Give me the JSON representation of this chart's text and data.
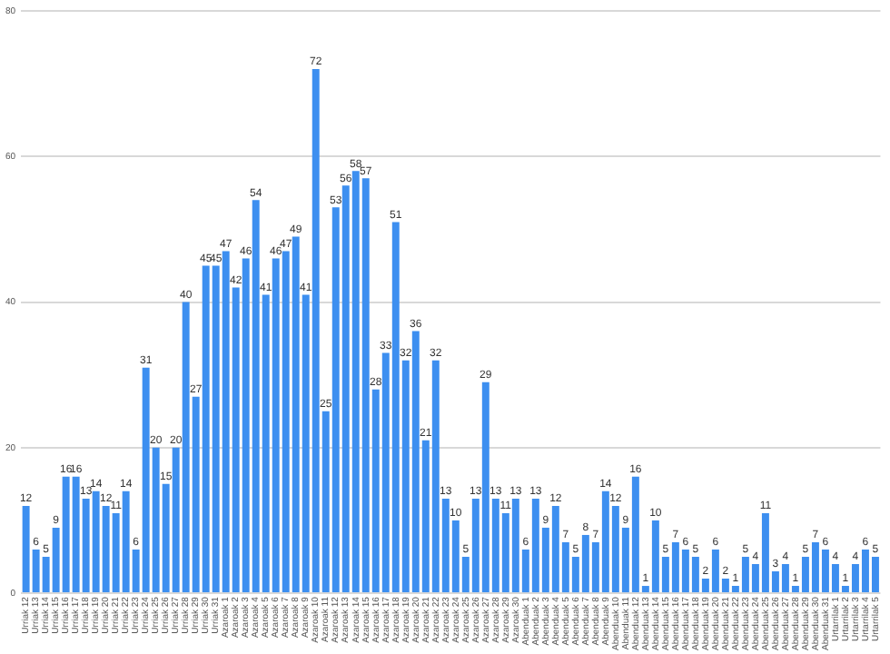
{
  "chart_data": {
    "type": "bar",
    "categories": [
      "Urriak 12",
      "Urriak 13",
      "Urriak 14",
      "Urriak 15",
      "Urriak 16",
      "Urriak 17",
      "Urriak 18",
      "Urriak 19",
      "Urriak 20",
      "Urriak 21",
      "Urriak 22",
      "Urriak 23",
      "Urriak 24",
      "Urriak 25",
      "Urriak 26",
      "Urriak 27",
      "Urriak 28",
      "Urriak 29",
      "Urriak 30",
      "Urriak 31",
      "Azaroak 1",
      "Azaroak 2",
      "Azaroak 3",
      "Azaroak 4",
      "Azaroak 5",
      "Azaroak 6",
      "Azaroak 7",
      "Azaroak 8",
      "Azaroak 9",
      "Azaroak 10",
      "Azaroak 11",
      "Azaroak 12",
      "Azaroak 13",
      "Azaroak 14",
      "Azaroak 15",
      "Azaroak 16",
      "Azaroak 17",
      "Azaroak 18",
      "Azaroak 19",
      "Azaroak 20",
      "Azaroak 21",
      "Azaroak 22",
      "Azaroak 23",
      "Azaroak 24",
      "Azaroak 25",
      "Azaroak 26",
      "Azaroak 27",
      "Azaroak 28",
      "Azaroak 29",
      "Azaroak 30",
      "Abenduak 1",
      "Abenduak 2",
      "Abenduak 3",
      "Abenduak 4",
      "Abenduak 5",
      "Abenduak 6",
      "Abenduak 7",
      "Abenduak 8",
      "Abenduak 9",
      "Abenduak 10",
      "Abenduak 11",
      "Abenduak 12",
      "Abenduak 13",
      "Abenduak 14",
      "Abenduak 15",
      "Abenduak 16",
      "Abenduak 17",
      "Abenduak 18",
      "Abenduak 19",
      "Abenduak 20",
      "Abenduak 21",
      "Abenduak 22",
      "Abenduak 23",
      "Abenduak 24",
      "Abenduak 25",
      "Abenduak 26",
      "Abenduak 27",
      "Abenduak 28",
      "Abenduak 29",
      "Abenduak 30",
      "Abenduak 31",
      "Urtarrilak 1",
      "Urtarrilak 2",
      "Urtarrilak 3",
      "Urtarrilak 4",
      "Urtarrilak 5"
    ],
    "values": [
      12,
      6,
      5,
      9,
      16,
      16,
      13,
      14,
      12,
      11,
      14,
      6,
      31,
      20,
      15,
      20,
      40,
      27,
      45,
      45,
      47,
      42,
      46,
      54,
      41,
      46,
      47,
      49,
      41,
      72,
      25,
      53,
      56,
      58,
      57,
      28,
      33,
      51,
      32,
      36,
      21,
      32,
      13,
      10,
      5,
      13,
      29,
      13,
      11,
      13,
      6,
      13,
      9,
      12,
      7,
      5,
      8,
      7,
      14,
      12,
      9,
      16,
      1,
      10,
      5,
      7,
      6,
      5,
      2,
      6,
      2,
      1,
      5,
      4,
      11,
      3,
      4,
      1,
      5,
      7,
      6,
      4,
      1,
      4,
      6,
      5
    ],
    "color": "#3d8ff0",
    "ylim": [
      0,
      80
    ],
    "yticks": [
      0,
      20,
      40,
      60,
      80
    ],
    "grid": "y",
    "data_labels": true
  }
}
